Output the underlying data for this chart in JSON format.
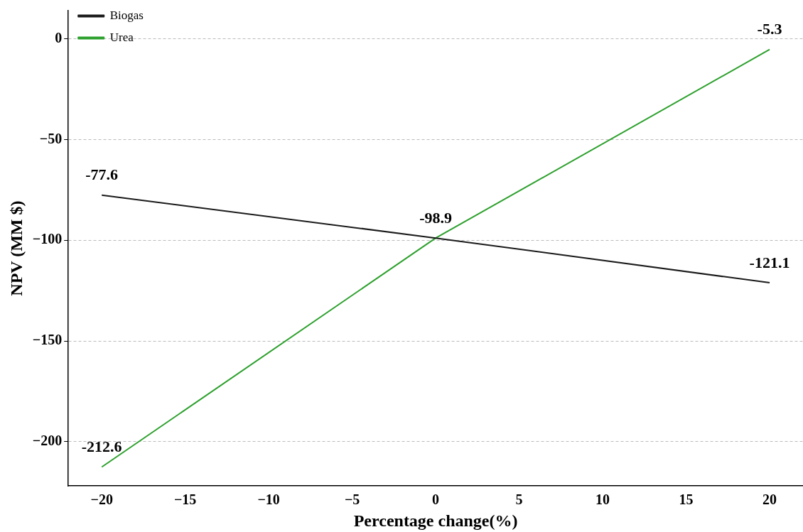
{
  "chart_data": {
    "type": "line",
    "xlabel": "Percentage change(%)",
    "ylabel": "NPV (MM $)",
    "x": [
      -20,
      0,
      20
    ],
    "series": [
      {
        "name": "Biogas",
        "color": "#1a1a1a",
        "values": [
          -77.6,
          -98.9,
          -121.1
        ],
        "value_labels": [
          "-77.6",
          "-98.9",
          "-121.1"
        ]
      },
      {
        "name": "Urea",
        "color": "#2ca02c",
        "values": [
          -212.6,
          -98.9,
          -5.3
        ],
        "value_labels": [
          "-212.6",
          null,
          "-5.3"
        ]
      }
    ],
    "xlim": [
      -22,
      22
    ],
    "xticks": [
      {
        "value": -20,
        "label": "−20"
      },
      {
        "value": -15,
        "label": "−15"
      },
      {
        "value": -10,
        "label": "−10"
      },
      {
        "value": -5,
        "label": "−5"
      },
      0,
      5,
      10,
      15,
      20
    ],
    "ylim": [
      -222,
      14
    ],
    "yticks": [
      {
        "value": -200,
        "label": "−200"
      },
      {
        "value": -150,
        "label": "−150"
      },
      {
        "value": -100,
        "label": "−100"
      },
      {
        "value": -50,
        "label": "−50"
      },
      0
    ],
    "grid": "y",
    "legend": "top left",
    "line_style": "solid"
  }
}
